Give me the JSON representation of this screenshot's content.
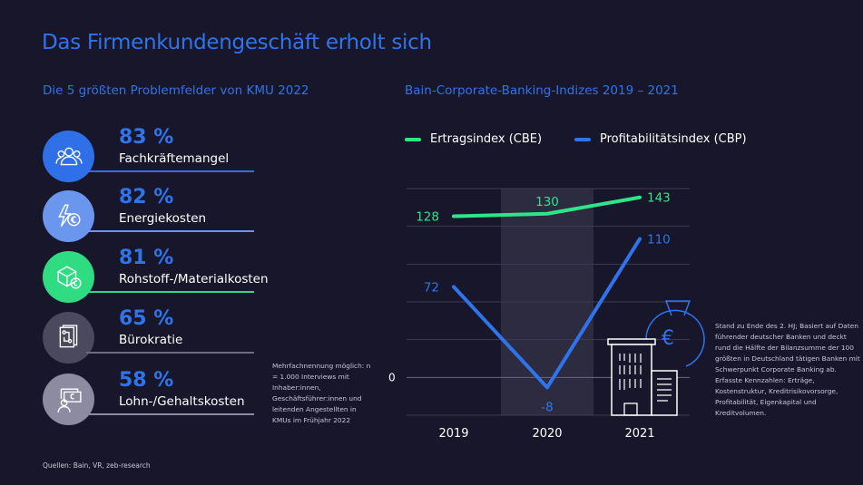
{
  "title": "Das Firmenkundengeschäft erholt sich",
  "left": {
    "subtitle": "Die 5 größten Problemfelder von KMU 2022",
    "items": [
      {
        "percent": "83 %",
        "label": "Fachkräftemangel",
        "icon": "people-group-icon",
        "color": "#2f6fe8"
      },
      {
        "percent": "82 %",
        "label": "Energiekosten",
        "icon": "lightning-euro-icon",
        "color": "#6b96ee"
      },
      {
        "percent": "81 %",
        "label": "Rohstoff-/Materialkosten",
        "icon": "box-euro-icon",
        "color": "#2fdc82"
      },
      {
        "percent": "65 %",
        "label": "Bürokratie",
        "icon": "documents-icon",
        "color": "#4a495d"
      },
      {
        "percent": "58 %",
        "label": "Lohn-/Gehaltskosten",
        "icon": "person-money-icon",
        "color": "#8d8ba1"
      }
    ],
    "note": "Mehrfachnennung möglich: n = 1.000 Interviews mit Inhaber:innen, Geschäftsführer:innen und leitenden Angestellten in KMUs im Frühjahr 2022"
  },
  "chart_data": {
    "type": "line",
    "title": "Bain-Corporate-Banking-Indizes 2019 – 2021",
    "categories": [
      "2019",
      "2020",
      "2021"
    ],
    "highlight_category": "2020",
    "ylim": [
      -30,
      150
    ],
    "yticks": [
      -30,
      0,
      30,
      60,
      90,
      120,
      150
    ],
    "ytick_labels_shown": [
      "0"
    ],
    "grid": true,
    "legend_placement": "top",
    "series": [
      {
        "name": "Ertragsindex (CBE)",
        "values": [
          128,
          130,
          143
        ],
        "labels": [
          "128",
          "130",
          "143"
        ],
        "color": "#2ee58a"
      },
      {
        "name": "Profitabilitätsindex (CBP)",
        "values": [
          72,
          -8,
          110
        ],
        "labels": [
          "72",
          "-8",
          "110"
        ],
        "color": "#2f74ea"
      }
    ]
  },
  "right_note": "Stand zu Ende des 2. HJ; Basiert auf Daten führender deutscher Banken und deckt rund die Hälfte der Bilanzsumme der 100 größten in Deutschland tätigen Banken mit Schwerpunkt Corporate Banking ab. Erfasste Kennzahlen: Erträge, Kostenstruktur, Kreditrisikovorsorge, Profitabilität, Eigenkapital und Kreditvolumen.",
  "sources": "Quellen: Bain, VR, zeb-research"
}
